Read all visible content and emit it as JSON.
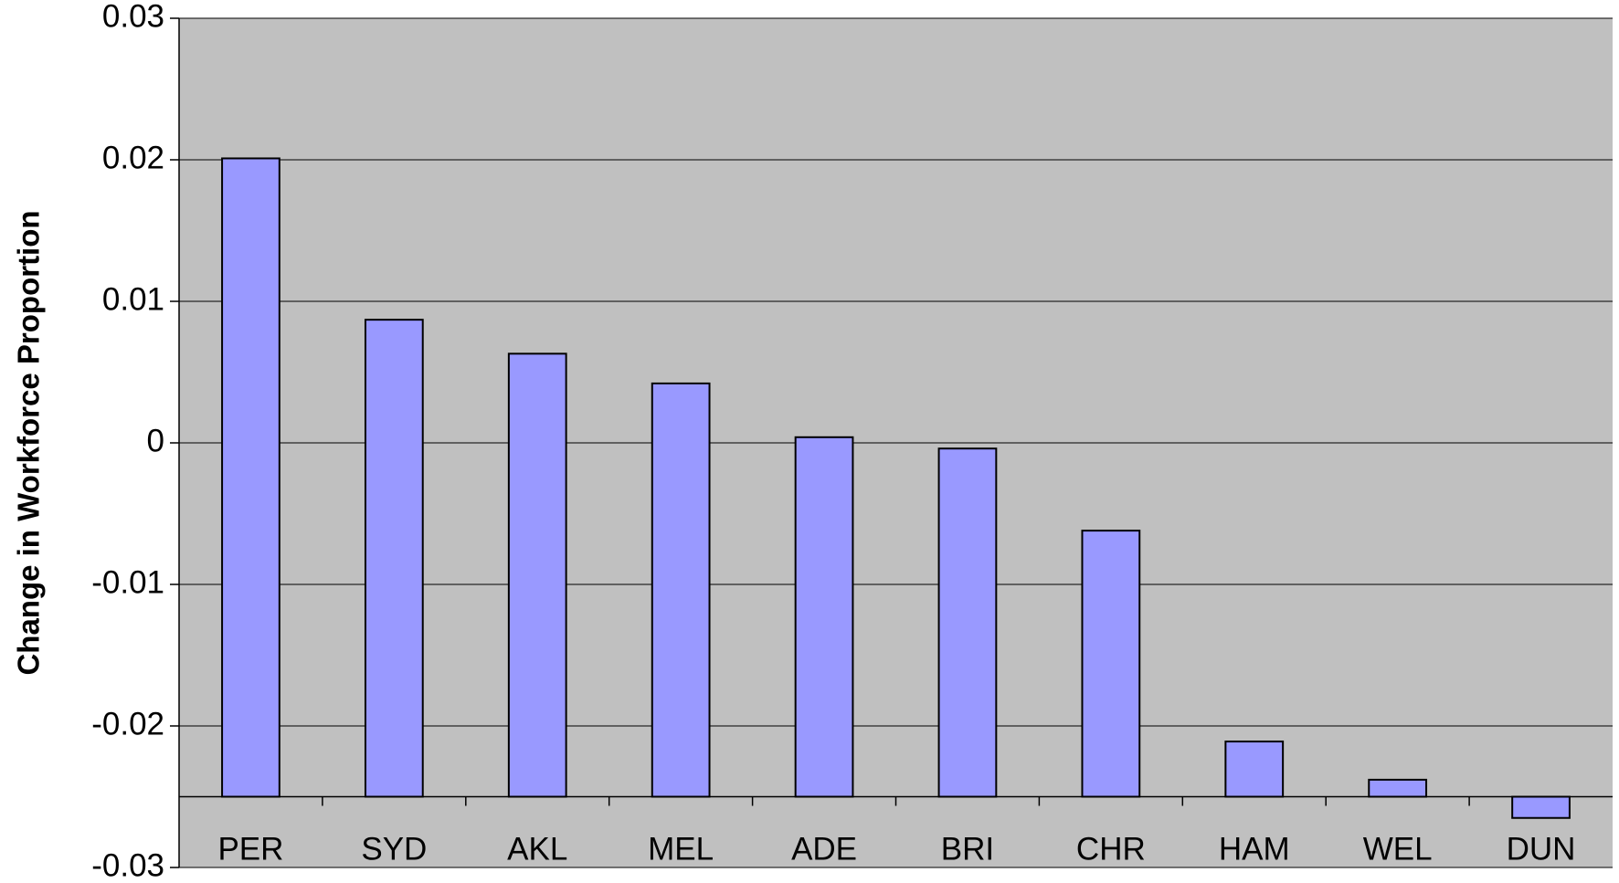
{
  "chart_data": {
    "type": "bar",
    "y_label": "Change in Workforce Proportion",
    "categories": [
      "PER",
      "SYD",
      "AKL",
      "MEL",
      "ADE",
      "BRI",
      "CHR",
      "HAM",
      "WEL",
      "DUN"
    ],
    "values": [
      0.0201,
      0.0087,
      0.0063,
      0.0042,
      0.0004,
      -0.0004,
      -0.0062,
      -0.0211,
      -0.0238,
      -0.0265
    ],
    "color": "#9999ff",
    "background": "#c0c0c0",
    "ylim": [
      -0.03,
      0.03
    ],
    "yticks": [
      -0.03,
      -0.02,
      -0.01,
      0,
      0.01,
      0.02,
      0.03
    ],
    "category_axis_crossing": -0.025,
    "grid": true
  }
}
